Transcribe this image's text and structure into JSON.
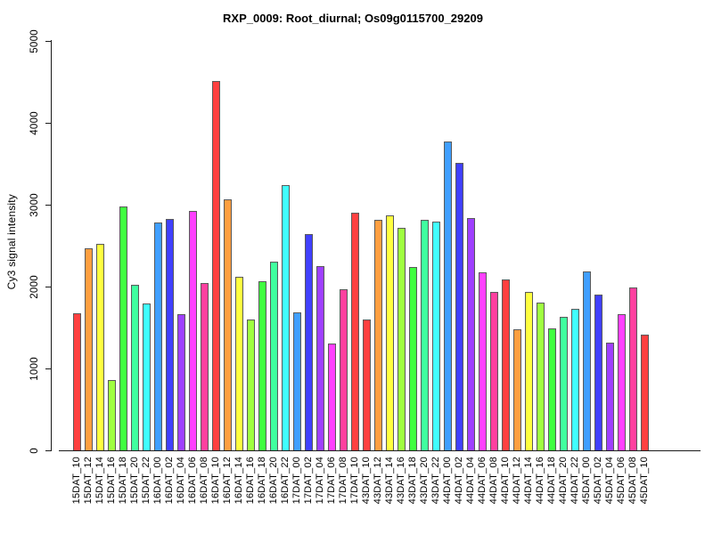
{
  "chart_data": {
    "type": "bar",
    "title": "RXP_0009: Root_diurnal; Os09g0115700_29209",
    "ylabel": "Cy3 signal intensity",
    "xlabel": "",
    "ylim": [
      0,
      5000
    ],
    "yticks": [
      0,
      1000,
      2000,
      3000,
      4000,
      5000
    ],
    "grid": false,
    "legend_position": "none",
    "background": "#ffffff",
    "axis_color": "#1a1a1a",
    "bar_border_color": "#595959",
    "palette_cycle": [
      "#FF4040",
      "#FF9F40",
      "#FFFF40",
      "#9FFF40",
      "#40FF40",
      "#40FF9F",
      "#40FFFF",
      "#409FFF",
      "#4040FF",
      "#9F40FF",
      "#FF40FF",
      "#FF409F"
    ],
    "categories": [
      "15DAT_10",
      "15DAT_12",
      "15DAT_14",
      "15DAT_16",
      "15DAT_18",
      "15DAT_20",
      "15DAT_22",
      "16DAT_00",
      "16DAT_02",
      "16DAT_04",
      "16DAT_06",
      "16DAT_08",
      "16DAT_10",
      "16DAT_12",
      "16DAT_14",
      "16DAT_16",
      "16DAT_18",
      "16DAT_20",
      "16DAT_22",
      "17DAT_00",
      "17DAT_02",
      "17DAT_04",
      "17DAT_06",
      "17DAT_08",
      "17DAT_10",
      "43DAT_10",
      "43DAT_12",
      "43DAT_14",
      "43DAT_16",
      "43DAT_18",
      "43DAT_20",
      "43DAT_22",
      "44DAT_00",
      "44DAT_02",
      "44DAT_04",
      "44DAT_06",
      "44DAT_08",
      "44DAT_10",
      "44DAT_12",
      "44DAT_14",
      "44DAT_16",
      "44DAT_18",
      "44DAT_20",
      "44DAT_22",
      "45DAT_00",
      "45DAT_02",
      "45DAT_04",
      "45DAT_06",
      "45DAT_08",
      "45DAT_10"
    ],
    "values": [
      1670,
      2470,
      2520,
      860,
      2980,
      2020,
      1790,
      2780,
      2830,
      1660,
      2920,
      2040,
      4510,
      3070,
      2120,
      1600,
      2060,
      2300,
      3240,
      1680,
      2640,
      2250,
      1300,
      1970,
      2900,
      1600,
      2810,
      2870,
      2720,
      2240,
      2820,
      2790,
      3770,
      3510,
      2840,
      2170,
      1930,
      2090,
      1480,
      1940,
      1800,
      1490,
      1630,
      1730,
      2190,
      1900,
      1310,
      1660,
      1990,
      1410
    ],
    "colors": [
      "#FF4040",
      "#FF9F40",
      "#FFFF40",
      "#9FFF40",
      "#40FF40",
      "#40FF9F",
      "#40FFFF",
      "#409FFF",
      "#4040FF",
      "#9F40FF",
      "#FF40FF",
      "#FF409F",
      "#FF4040",
      "#FF9F40",
      "#FFFF40",
      "#9FFF40",
      "#40FF40",
      "#40FF9F",
      "#40FFFF",
      "#409FFF",
      "#4040FF",
      "#9F40FF",
      "#FF40FF",
      "#FF409F",
      "#FF4040",
      "#FF4040",
      "#FF9F40",
      "#FFFF40",
      "#9FFF40",
      "#40FF40",
      "#40FF9F",
      "#40FFFF",
      "#409FFF",
      "#4040FF",
      "#9F40FF",
      "#FF40FF",
      "#FF409F",
      "#FF4040",
      "#FF9F40",
      "#FFFF40",
      "#9FFF40",
      "#40FF40",
      "#40FF9F",
      "#40FFFF",
      "#409FFF",
      "#4040FF",
      "#9F40FF",
      "#FF40FF",
      "#FF409F",
      "#FF4040"
    ]
  }
}
